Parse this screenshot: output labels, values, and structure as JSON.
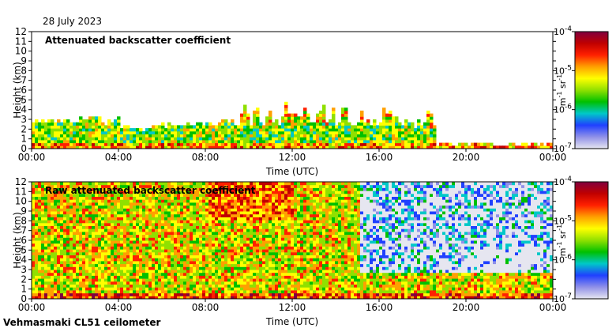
{
  "header": {
    "date": "28 July 2023"
  },
  "footer": {
    "instrument": "Vehmasmaki CL51 ceilometer"
  },
  "colorscale": {
    "stops": [
      "#e6e6f0",
      "#9090e8",
      "#2040ff",
      "#00c8c8",
      "#00c000",
      "#90e000",
      "#ffff00",
      "#ffa000",
      "#ff2000",
      "#c00000",
      "#800040"
    ],
    "ticks": [
      "10^-7",
      "10^-6",
      "10^-5",
      "10^-4"
    ],
    "unit": "m^-1 sr^-1"
  },
  "chart_data": [
    {
      "type": "heatmap",
      "title": "Attenuated backscatter coefficient",
      "xlabel": "Time (UTC)",
      "ylabel": "Height (km)",
      "x_ticks": [
        "00:00",
        "04:00",
        "08:00",
        "12:00",
        "16:00",
        "20:00",
        "00:00"
      ],
      "y_ticks": [
        "0",
        "1",
        "2",
        "3",
        "4",
        "5",
        "6",
        "7",
        "8",
        "9",
        "10",
        "11",
        "12"
      ],
      "xlim": [
        0,
        24
      ],
      "ylim": [
        0,
        12
      ],
      "colorbar_range": [
        "10^-7",
        "10^-4"
      ]
    },
    {
      "type": "heatmap",
      "title": "Raw attenuated backscatter coefficient",
      "xlabel": "Time (UTC)",
      "ylabel": "Height (km)",
      "x_ticks": [
        "00:00",
        "04:00",
        "08:00",
        "12:00",
        "16:00",
        "20:00",
        "00:00"
      ],
      "y_ticks": [
        "0",
        "1",
        "2",
        "3",
        "4",
        "5",
        "6",
        "7",
        "8",
        "9",
        "10",
        "11",
        "12"
      ],
      "xlim": [
        0,
        24
      ],
      "ylim": [
        0,
        12
      ],
      "colorbar_range": [
        "10^-7",
        "10^-4"
      ]
    }
  ]
}
